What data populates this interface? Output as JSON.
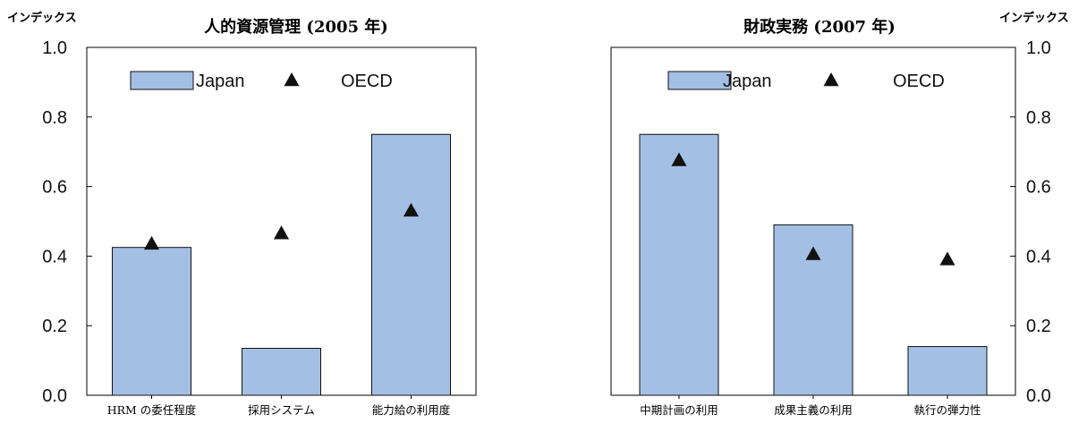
{
  "colors": {
    "bar_fill": "#a3bfe4",
    "bar_stroke": "#111111",
    "marker": "#111111",
    "axis": "#000000"
  },
  "chart_data": [
    {
      "type": "bar",
      "title": "人的資源管理 (2005 年)",
      "ylabel": "インデックス",
      "ylim": [
        0,
        1
      ],
      "yticks": [
        "0.0",
        "0.2",
        "0.4",
        "0.6",
        "0.8",
        "1.0"
      ],
      "axis_side": "left",
      "categories": [
        "HRM の委任程度",
        "採用システム",
        "能力給の利用度"
      ],
      "series": [
        {
          "name": "Japan",
          "kind": "bar",
          "values": [
            0.425,
            0.135,
            0.75
          ]
        },
        {
          "name": "OECD",
          "kind": "marker-triangle",
          "values": [
            0.44,
            0.47,
            0.535
          ]
        }
      ],
      "legend": {
        "placement": "top",
        "entries": [
          "Japan",
          "OECD"
        ]
      }
    },
    {
      "type": "bar",
      "title": "財政実務 (2007 年)",
      "ylabel": "インデックス",
      "ylim": [
        0,
        1
      ],
      "yticks": [
        "0.0",
        "0.2",
        "0.4",
        "0.6",
        "0.8",
        "1.0"
      ],
      "axis_side": "right",
      "categories": [
        "中期計画の利用",
        "成果主義の利用",
        "執行の弾力性"
      ],
      "series": [
        {
          "name": "Japan",
          "kind": "bar",
          "values": [
            0.75,
            0.49,
            0.14
          ]
        },
        {
          "name": "OECD",
          "kind": "marker-triangle",
          "values": [
            0.68,
            0.41,
            0.395
          ]
        }
      ],
      "legend": {
        "placement": "top",
        "entries": [
          "Japan",
          "OECD"
        ]
      }
    }
  ]
}
